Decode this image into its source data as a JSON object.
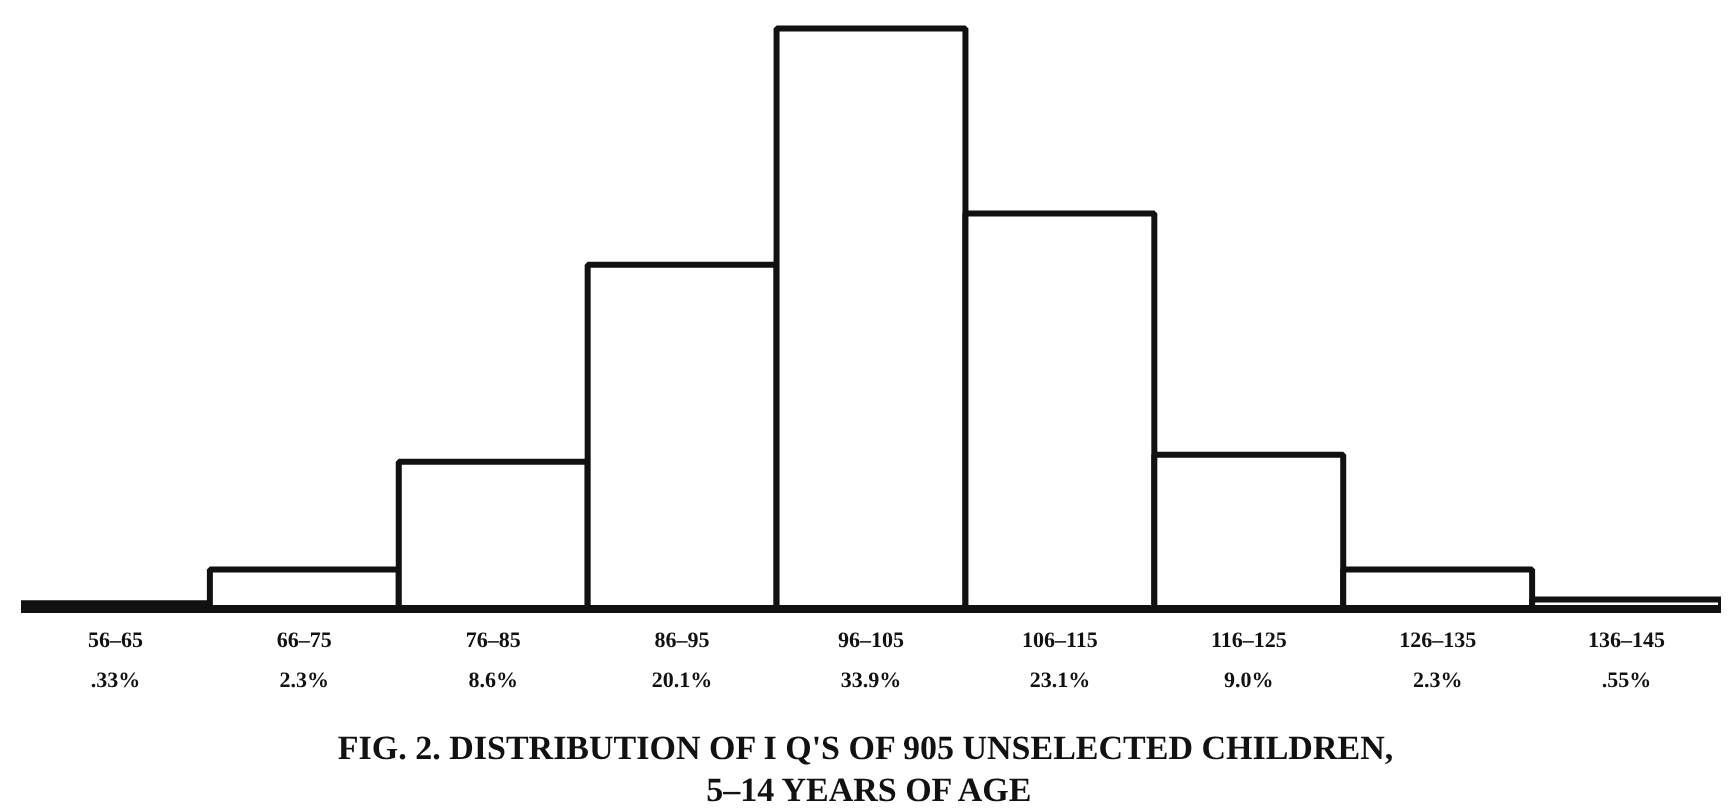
{
  "chart_data": {
    "type": "bar",
    "title": "FIG. 2.  DISTRIBUTION OF I Q'S OF 905 UNSELECTED CHILDREN,\n5–14 YEARS OF AGE",
    "categories": [
      "56–65",
      "66–75",
      "76–85",
      "86–95",
      "96–105",
      "106–115",
      "116–125",
      "126–135",
      "136–145"
    ],
    "values": [
      0.33,
      2.3,
      8.6,
      20.1,
      33.9,
      23.1,
      9.0,
      2.3,
      0.55
    ],
    "value_labels": [
      ".33%",
      "2.3%",
      "8.6%",
      "20.1%",
      "33.9%",
      "23.1%",
      "9.0%",
      "2.3%",
      ".55%"
    ],
    "color": "#ffffff",
    "grid": false
  }
}
